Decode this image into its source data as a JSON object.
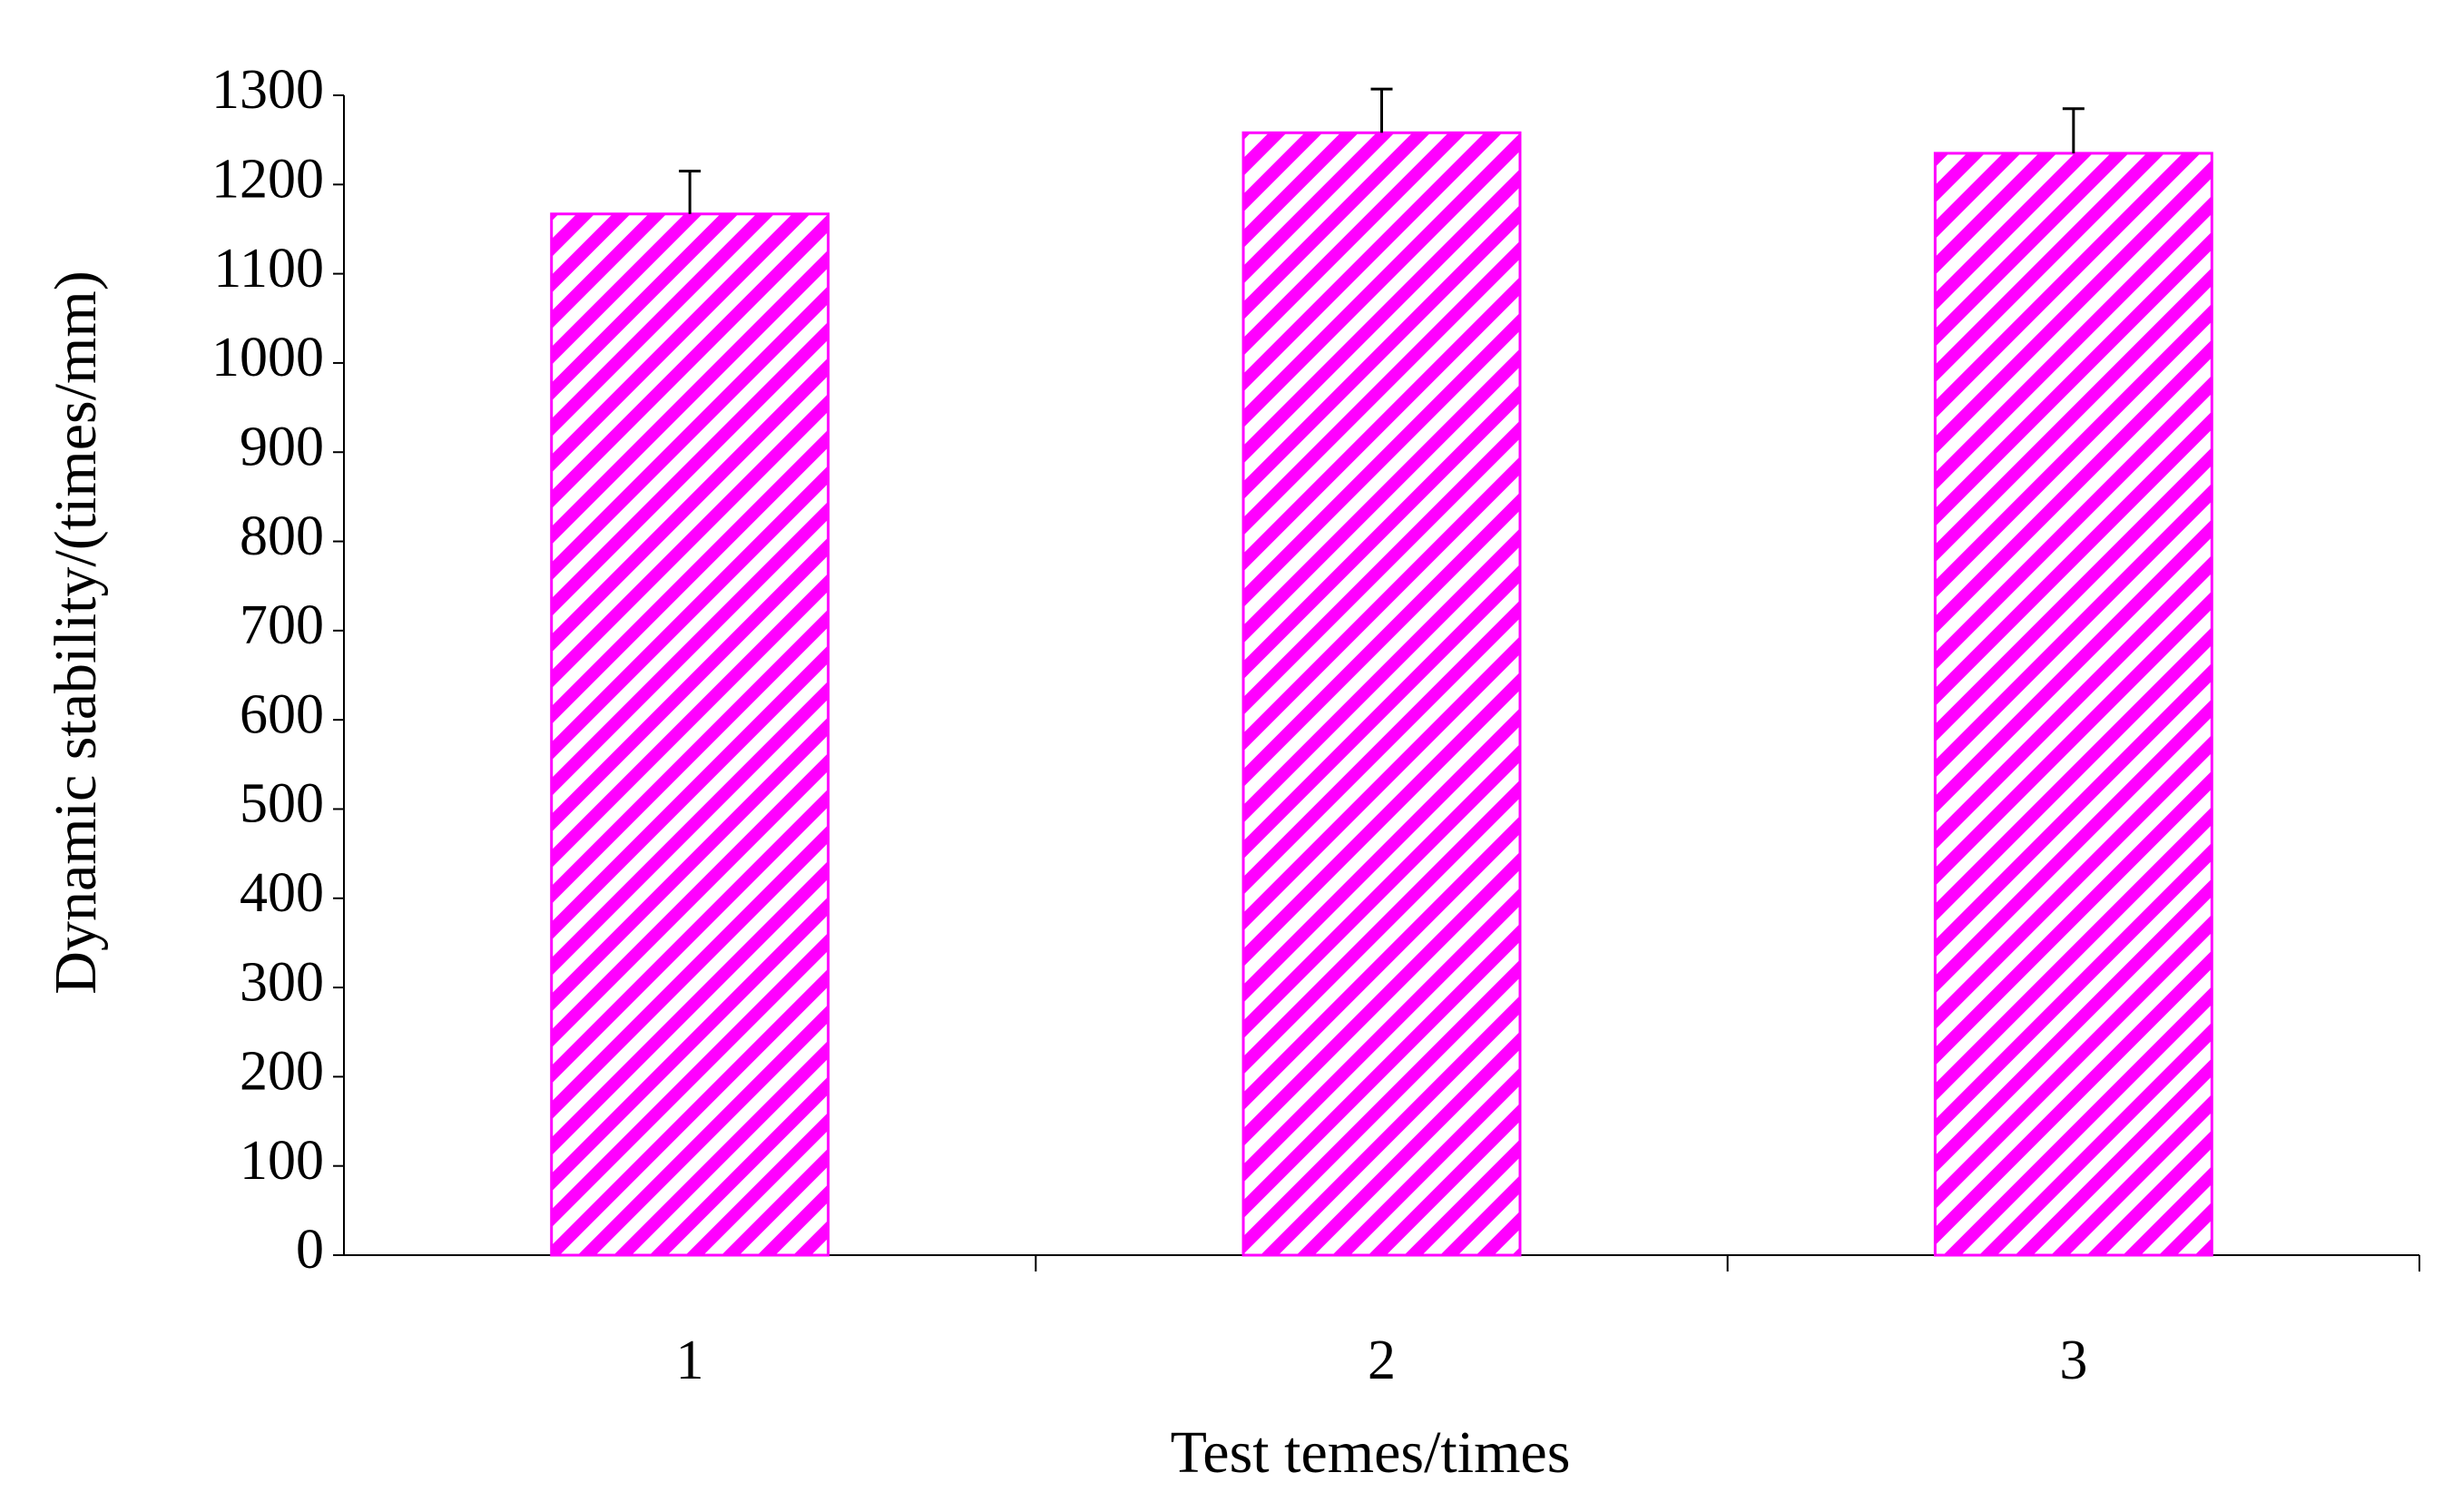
{
  "chart_data": {
    "type": "bar",
    "x_label": "Test temes/times",
    "y_label": "Dynamic stability/(times/mm)",
    "categories": [
      "1",
      "2",
      "3"
    ],
    "values": [
      1167,
      1258,
      1235
    ],
    "errors": [
      48,
      49,
      50
    ],
    "color": "#ff00ff",
    "hatch": true,
    "ylim": [
      0,
      1300
    ],
    "yticks": [
      0,
      100,
      200,
      300,
      400,
      500,
      600,
      700,
      800,
      900,
      1000,
      1100,
      1200,
      1300
    ],
    "grid": false
  }
}
